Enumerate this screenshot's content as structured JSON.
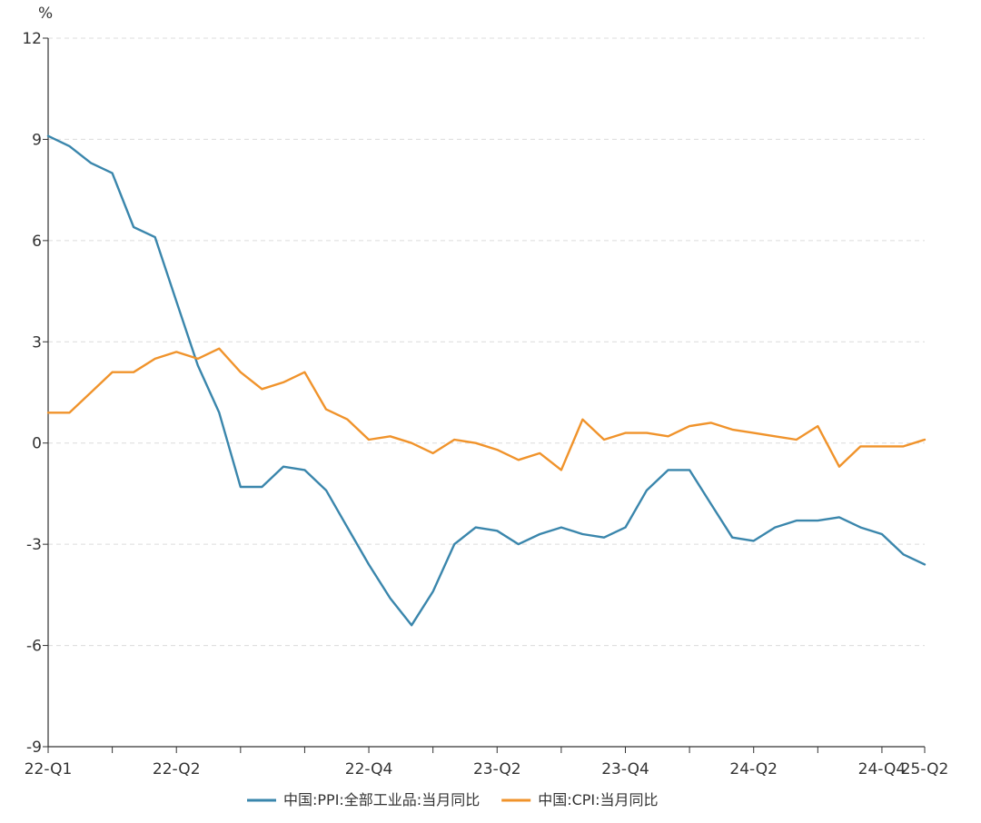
{
  "chart_data": {
    "type": "line",
    "unit": "%",
    "ylim": [
      -9,
      12
    ],
    "yticks": [
      -9,
      -6,
      -3,
      0,
      3,
      6,
      9,
      12
    ],
    "x": [
      "2022-01",
      "2022-02",
      "2022-03",
      "2022-04",
      "2022-05",
      "2022-06",
      "2022-07",
      "2022-08",
      "2022-09",
      "2022-10",
      "2022-11",
      "2022-12",
      "2023-01",
      "2023-02",
      "2023-03",
      "2023-04",
      "2023-05",
      "2023-06",
      "2023-07",
      "2023-08",
      "2023-09",
      "2023-10",
      "2023-11",
      "2023-12",
      "2024-01",
      "2024-02",
      "2024-03",
      "2024-04",
      "2024-05",
      "2024-06",
      "2024-07",
      "2024-08",
      "2024-09",
      "2024-10",
      "2024-11",
      "2024-12",
      "2025-01",
      "2025-02",
      "2025-03",
      "2025-04",
      "2025-05",
      "2025-06"
    ],
    "xtick_labels": [
      "22-Q1",
      "22-Q2",
      "22-Q4",
      "23-Q2",
      "23-Q4",
      "24-Q2",
      "24-Q4",
      "25-Q2"
    ],
    "grid": true,
    "legend_position": "bottom",
    "series": [
      {
        "name": "中国:PPI:全部工业品:当月同比",
        "color": "#3a86ac",
        "values": [
          9.1,
          8.8,
          8.3,
          8.0,
          6.4,
          6.1,
          4.2,
          2.3,
          0.9,
          -1.3,
          -1.3,
          -0.7,
          -0.8,
          -1.4,
          -2.5,
          -3.6,
          -4.6,
          -5.4,
          -4.4,
          -3.0,
          -2.5,
          -2.6,
          -3.0,
          -2.7,
          -2.5,
          -2.7,
          -2.8,
          -2.5,
          -1.4,
          -0.8,
          -0.8,
          -1.8,
          -2.8,
          -2.9,
          -2.5,
          -2.3,
          -2.3,
          -2.2,
          -2.5,
          -2.7,
          -3.3,
          -3.6
        ]
      },
      {
        "name": "中国:CPI:当月同比",
        "color": "#f0932b",
        "values": [
          0.9,
          0.9,
          1.5,
          2.1,
          2.1,
          2.5,
          2.7,
          2.5,
          2.8,
          2.1,
          1.6,
          1.8,
          2.1,
          1.0,
          0.7,
          0.1,
          0.2,
          0.0,
          -0.3,
          0.1,
          0.0,
          -0.2,
          -0.5,
          -0.3,
          -0.8,
          0.7,
          0.1,
          0.3,
          0.3,
          0.2,
          0.5,
          0.6,
          0.4,
          0.3,
          0.2,
          0.1,
          0.5,
          -0.7,
          -0.1,
          -0.1,
          -0.1,
          0.1
        ]
      }
    ]
  }
}
